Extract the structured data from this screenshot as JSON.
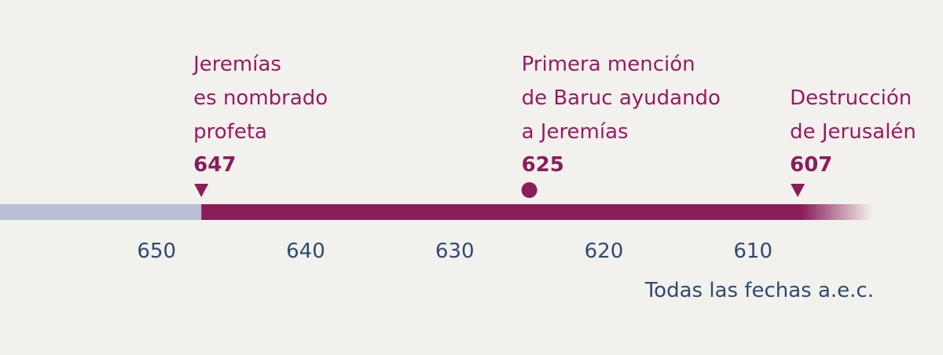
{
  "chart_data": {
    "type": "timeline",
    "xlim": [
      660.5,
      602
    ],
    "xticks": [
      650,
      640,
      630,
      620,
      610
    ],
    "note": "Todas las fechas a.e.c.",
    "events": [
      {
        "lines": [
          "Jeremías",
          "es nombrado",
          "profeta"
        ],
        "year": 647,
        "marker": "triangle"
      },
      {
        "lines": [
          "Primera mención",
          "de Baruc ayudando",
          "a Jeremías"
        ],
        "year": 625,
        "marker": "circle"
      },
      {
        "lines": [
          "Destrucción",
          "de Jerusalén"
        ],
        "year": 607,
        "marker": "triangle"
      }
    ],
    "color": "#8b1d5a",
    "past_color": "#b9c0d3"
  }
}
